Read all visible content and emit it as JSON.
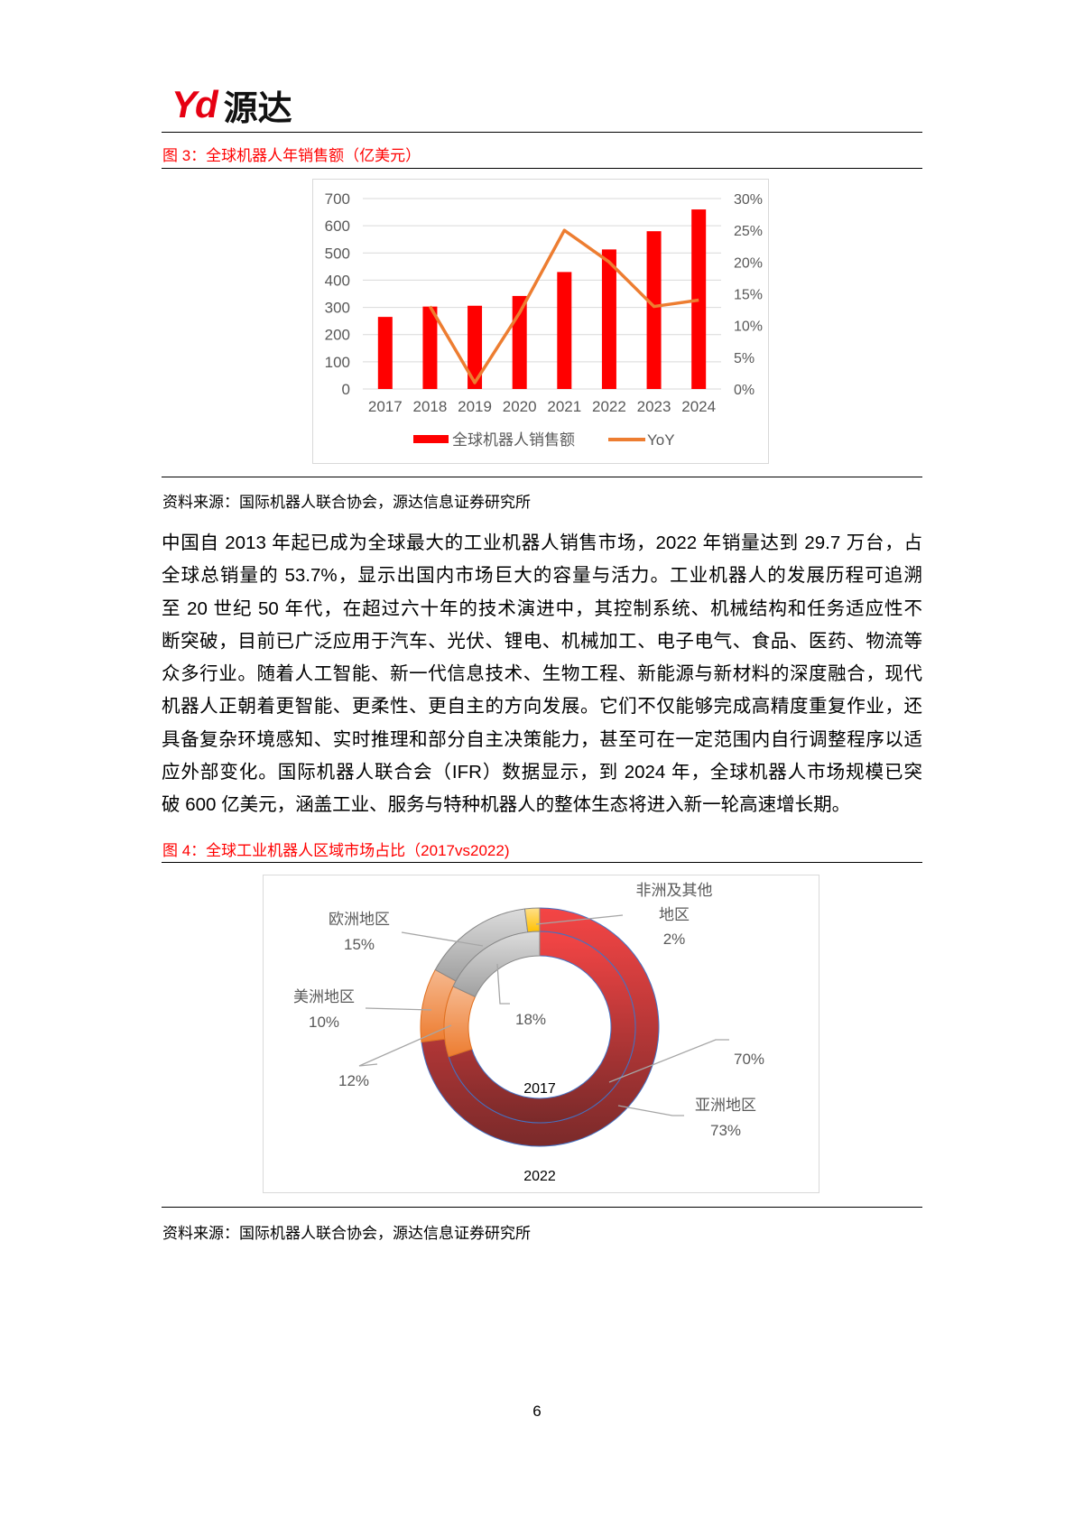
{
  "header": {
    "logo_latin": "Yd",
    "logo_cn": "源达"
  },
  "figure3": {
    "title": "图 3：全球机器人年销售额（亿美元）",
    "source": "资料来源：国际机器人联合协会，源达信息证券研究所"
  },
  "figure4": {
    "title": "图 4：全球工业机器人区域市场占比（2017vs2022)",
    "source": "资料来源：国际机器人联合协会，源达信息证券研究所"
  },
  "body": {
    "lines": [
      "中国自 2013 年起已成为全球最大的工业机器人销售市场，2022 年销量达到 29.7 万台，占",
      "全球总销量的 53.7%，显示出国内市场巨大的容量与活力。工业机器人的发展历程可追溯",
      "至 20 世纪 50 年代，在超过六十年的技术演进中，其控制系统、机械结构和任务适应性不",
      "断突破，目前已广泛应用于汽车、光伏、锂电、机械加工、电子电气、食品、医药、物流等",
      "众多行业。随着人工智能、新一代信息技术、生物工程、新能源与新材料的深度融合，现代",
      "机器人正朝着更智能、更柔性、更自主的方向发展。它们不仅能够完成高精度重复作业，还",
      "具备复杂环境感知、实时推理和部分自主决策能力，甚至可在一定范围内自行调整程序以适",
      "应外部变化。国际机器人联合会（IFR）数据显示，到 2024 年，全球机器人市场规模已突",
      "破 600 亿美元，涵盖工业、服务与特种机器人的整体生态将进入新一轮高速增长期。"
    ]
  },
  "page_number": "6",
  "chart_data": [
    {
      "type": "bar+line",
      "categories": [
        "2017",
        "2018",
        "2019",
        "2020",
        "2021",
        "2022",
        "2023",
        "2024"
      ],
      "series": [
        {
          "name": "全球机器人销售额",
          "type": "bar",
          "axis": "left",
          "color": "#ff0000",
          "values": [
            265,
            303,
            306,
            342,
            430,
            513,
            580,
            660
          ]
        },
        {
          "name": "YoY",
          "type": "line",
          "axis": "right",
          "color": "#ed7d31",
          "values": [
            null,
            13,
            1,
            12,
            25,
            20,
            13,
            14
          ]
        }
      ],
      "y_left": {
        "range": [
          0,
          700
        ],
        "ticks": [
          "0",
          "100",
          "200",
          "300",
          "400",
          "500",
          "600",
          "700"
        ]
      },
      "y_right": {
        "range": [
          0,
          30
        ],
        "ticks": [
          "0%",
          "5%",
          "10%",
          "15%",
          "20%",
          "25%",
          "30%"
        ]
      },
      "grid": true,
      "legend": "bottom"
    },
    {
      "type": "donut",
      "rings": [
        {
          "name": "2022",
          "position": "outer",
          "slices": [
            {
              "label": "亚洲地区",
              "value": 73,
              "text": "73%",
              "color": "#c0392b"
            },
            {
              "label": "美洲地区",
              "value": 10,
              "text": "10%",
              "color": "#ed7d31"
            },
            {
              "label": "欧洲地区",
              "value": 15,
              "text": "15%",
              "color": "#a6a6a6"
            },
            {
              "label": "非洲及其他地区",
              "value": 2,
              "text": "2%",
              "color": "#ffc000"
            }
          ]
        },
        {
          "name": "2017",
          "position": "inner",
          "slices": [
            {
              "label": "亚洲地区",
              "value": 70,
              "text": "70%",
              "color": "#c0392b"
            },
            {
              "label": "美洲地区",
              "value": 12,
              "text": "12%",
              "color": "#ed7d31"
            },
            {
              "label": "欧洲地区",
              "value": 18,
              "text": "18%",
              "color": "#a6a6a6"
            }
          ]
        }
      ],
      "labels": {
        "africa_l1": "非洲及其他",
        "africa_l2": "地区",
        "europe": "欧洲地区",
        "americas": "美洲地区",
        "asia": "亚洲地区"
      }
    }
  ]
}
